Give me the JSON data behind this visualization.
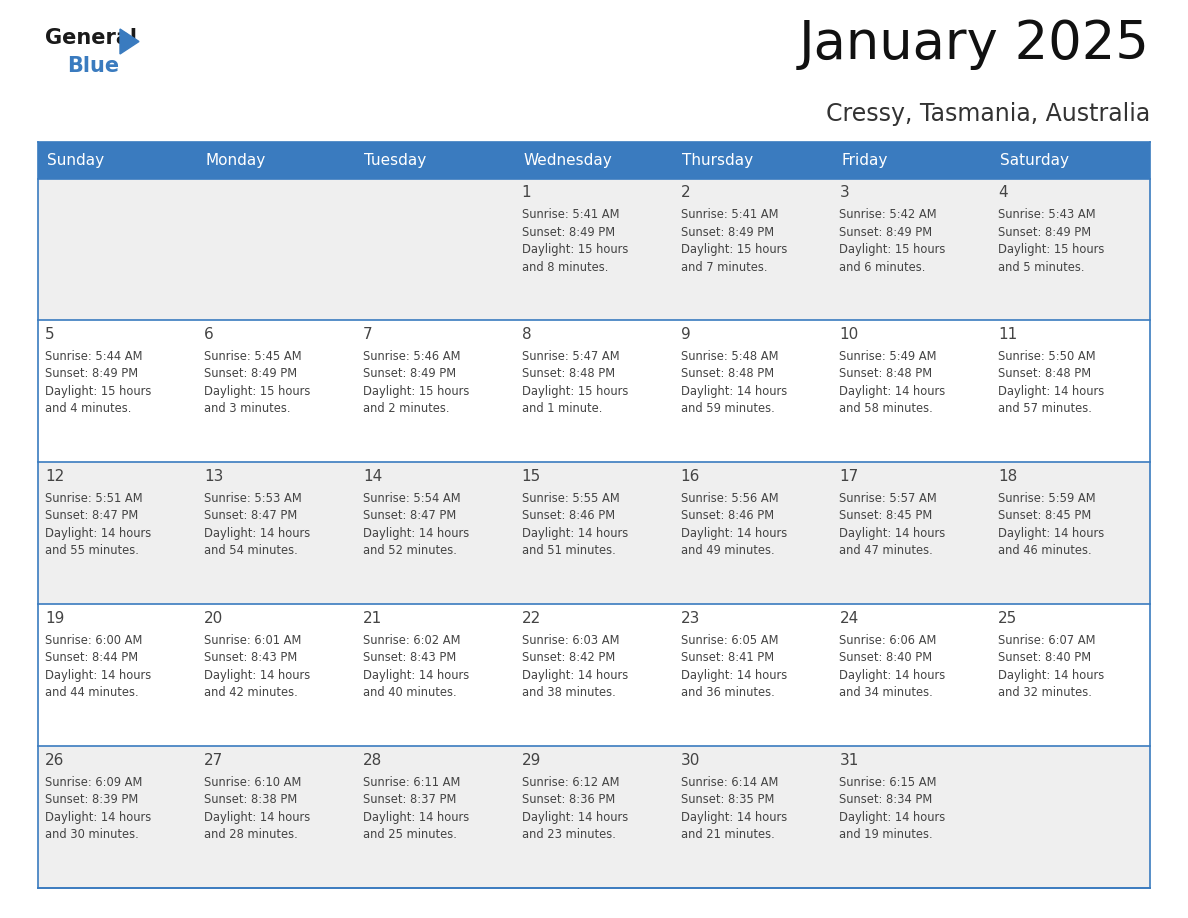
{
  "title": "January 2025",
  "subtitle": "Cressy, Tasmania, Australia",
  "days_of_week": [
    "Sunday",
    "Monday",
    "Tuesday",
    "Wednesday",
    "Thursday",
    "Friday",
    "Saturday"
  ],
  "header_bg": "#3a7bbf",
  "header_text_color": "#ffffff",
  "cell_bg_light": "#efefef",
  "cell_bg_white": "#ffffff",
  "cell_border_color": "#3a7bbf",
  "text_color": "#444444",
  "title_color": "#111111",
  "subtitle_color": "#333333",
  "calendar": [
    [
      null,
      null,
      null,
      {
        "day": 1,
        "sunrise": "5:41 AM",
        "sunset": "8:49 PM",
        "daylight": "15 hours and 8 minutes"
      },
      {
        "day": 2,
        "sunrise": "5:41 AM",
        "sunset": "8:49 PM",
        "daylight": "15 hours and 7 minutes"
      },
      {
        "day": 3,
        "sunrise": "5:42 AM",
        "sunset": "8:49 PM",
        "daylight": "15 hours and 6 minutes"
      },
      {
        "day": 4,
        "sunrise": "5:43 AM",
        "sunset": "8:49 PM",
        "daylight": "15 hours and 5 minutes"
      }
    ],
    [
      {
        "day": 5,
        "sunrise": "5:44 AM",
        "sunset": "8:49 PM",
        "daylight": "15 hours and 4 minutes"
      },
      {
        "day": 6,
        "sunrise": "5:45 AM",
        "sunset": "8:49 PM",
        "daylight": "15 hours and 3 minutes"
      },
      {
        "day": 7,
        "sunrise": "5:46 AM",
        "sunset": "8:49 PM",
        "daylight": "15 hours and 2 minutes"
      },
      {
        "day": 8,
        "sunrise": "5:47 AM",
        "sunset": "8:48 PM",
        "daylight": "15 hours and 1 minute"
      },
      {
        "day": 9,
        "sunrise": "5:48 AM",
        "sunset": "8:48 PM",
        "daylight": "14 hours and 59 minutes"
      },
      {
        "day": 10,
        "sunrise": "5:49 AM",
        "sunset": "8:48 PM",
        "daylight": "14 hours and 58 minutes"
      },
      {
        "day": 11,
        "sunrise": "5:50 AM",
        "sunset": "8:48 PM",
        "daylight": "14 hours and 57 minutes"
      }
    ],
    [
      {
        "day": 12,
        "sunrise": "5:51 AM",
        "sunset": "8:47 PM",
        "daylight": "14 hours and 55 minutes"
      },
      {
        "day": 13,
        "sunrise": "5:53 AM",
        "sunset": "8:47 PM",
        "daylight": "14 hours and 54 minutes"
      },
      {
        "day": 14,
        "sunrise": "5:54 AM",
        "sunset": "8:47 PM",
        "daylight": "14 hours and 52 minutes"
      },
      {
        "day": 15,
        "sunrise": "5:55 AM",
        "sunset": "8:46 PM",
        "daylight": "14 hours and 51 minutes"
      },
      {
        "day": 16,
        "sunrise": "5:56 AM",
        "sunset": "8:46 PM",
        "daylight": "14 hours and 49 minutes"
      },
      {
        "day": 17,
        "sunrise": "5:57 AM",
        "sunset": "8:45 PM",
        "daylight": "14 hours and 47 minutes"
      },
      {
        "day": 18,
        "sunrise": "5:59 AM",
        "sunset": "8:45 PM",
        "daylight": "14 hours and 46 minutes"
      }
    ],
    [
      {
        "day": 19,
        "sunrise": "6:00 AM",
        "sunset": "8:44 PM",
        "daylight": "14 hours and 44 minutes"
      },
      {
        "day": 20,
        "sunrise": "6:01 AM",
        "sunset": "8:43 PM",
        "daylight": "14 hours and 42 minutes"
      },
      {
        "day": 21,
        "sunrise": "6:02 AM",
        "sunset": "8:43 PM",
        "daylight": "14 hours and 40 minutes"
      },
      {
        "day": 22,
        "sunrise": "6:03 AM",
        "sunset": "8:42 PM",
        "daylight": "14 hours and 38 minutes"
      },
      {
        "day": 23,
        "sunrise": "6:05 AM",
        "sunset": "8:41 PM",
        "daylight": "14 hours and 36 minutes"
      },
      {
        "day": 24,
        "sunrise": "6:06 AM",
        "sunset": "8:40 PM",
        "daylight": "14 hours and 34 minutes"
      },
      {
        "day": 25,
        "sunrise": "6:07 AM",
        "sunset": "8:40 PM",
        "daylight": "14 hours and 32 minutes"
      }
    ],
    [
      {
        "day": 26,
        "sunrise": "6:09 AM",
        "sunset": "8:39 PM",
        "daylight": "14 hours and 30 minutes"
      },
      {
        "day": 27,
        "sunrise": "6:10 AM",
        "sunset": "8:38 PM",
        "daylight": "14 hours and 28 minutes"
      },
      {
        "day": 28,
        "sunrise": "6:11 AM",
        "sunset": "8:37 PM",
        "daylight": "14 hours and 25 minutes"
      },
      {
        "day": 29,
        "sunrise": "6:12 AM",
        "sunset": "8:36 PM",
        "daylight": "14 hours and 23 minutes"
      },
      {
        "day": 30,
        "sunrise": "6:14 AM",
        "sunset": "8:35 PM",
        "daylight": "14 hours and 21 minutes"
      },
      {
        "day": 31,
        "sunrise": "6:15 AM",
        "sunset": "8:34 PM",
        "daylight": "14 hours and 19 minutes"
      },
      null
    ]
  ]
}
